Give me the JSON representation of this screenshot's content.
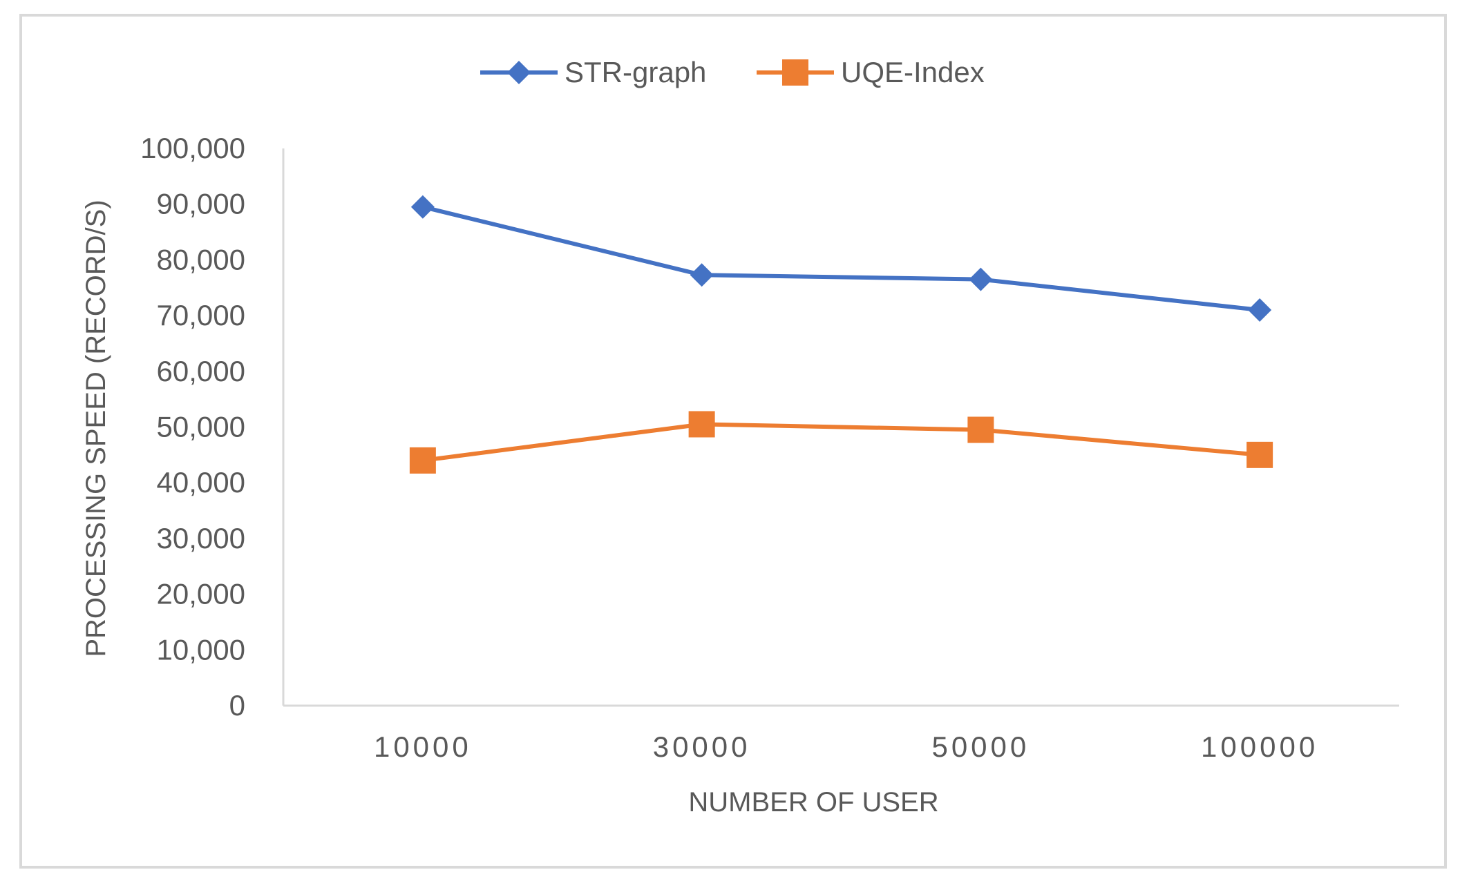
{
  "chart_data": {
    "type": "line",
    "title": "",
    "xlabel": "NUMBER OF USER",
    "ylabel": "PROCESSING SPEED (RECORD/S)",
    "categories": [
      "10000",
      "30000",
      "50000",
      "100000"
    ],
    "ylim": [
      0,
      100000
    ],
    "yticks": [
      0,
      10000,
      20000,
      30000,
      40000,
      50000,
      60000,
      70000,
      80000,
      90000,
      100000
    ],
    "ytick_labels": [
      "0",
      "10,000",
      "20,000",
      "30,000",
      "40,000",
      "50,000",
      "60,000",
      "70,000",
      "80,000",
      "90,000",
      "100,000"
    ],
    "grid": false,
    "legend_position": "top",
    "series": [
      {
        "name": "STR-graph",
        "marker": "diamond",
        "color": "#4472c4",
        "values": [
          89500,
          77300,
          76500,
          71000
        ]
      },
      {
        "name": "UQE-Index",
        "marker": "square",
        "color": "#ed7d31",
        "values": [
          44000,
          50500,
          49500,
          45000
        ]
      }
    ]
  }
}
